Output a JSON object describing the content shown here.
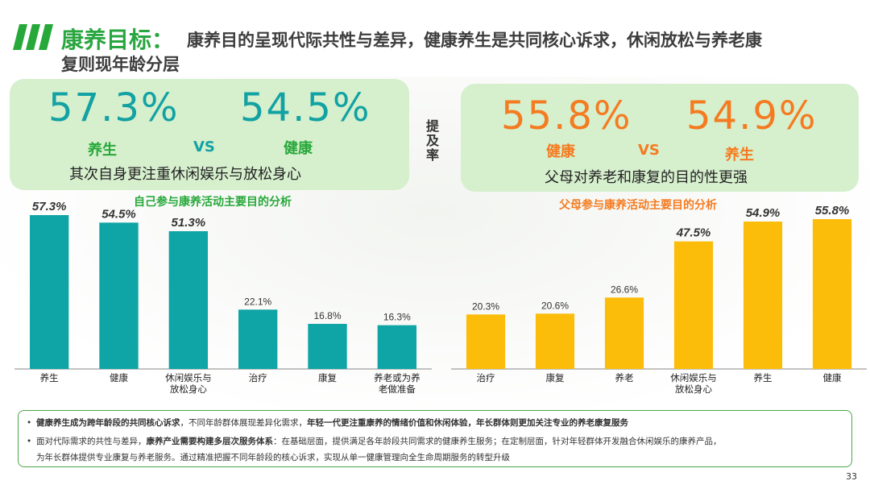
{
  "header": {
    "title": "康养目标：",
    "subtitle_line1": "康养目的呈现代际共性与差异，健康养生是共同核心诉求，休闲放松与养老康",
    "subtitle_line2": "复则现年龄分层"
  },
  "left_panel": {
    "value_a": "57.3%",
    "label_a": "养生",
    "vs": "VS",
    "value_b": "54.5%",
    "label_b": "健康",
    "note": "其次自身更注重休闲娱乐与放松身心"
  },
  "middle_label": [
    "提",
    "及",
    "率"
  ],
  "right_panel": {
    "value_a": "55.8%",
    "label_a": "健康",
    "vs": "VS",
    "value_b": "54.9%",
    "label_b": "养生",
    "note": "父母对养老和康复的目的性更强"
  },
  "chart_data": [
    {
      "type": "bar",
      "title": "自己参与康养活动主要目的分析",
      "categories": [
        "养生",
        "健康",
        "休闲娱乐与放松身心",
        "治疗",
        "康复",
        "养老或为养老做准备"
      ],
      "category_lines": [
        [
          "养生"
        ],
        [
          "健康"
        ],
        [
          "休闲娱乐与",
          "放松身心"
        ],
        [
          "治疗"
        ],
        [
          "康复"
        ],
        [
          "养老或为养",
          "老做准备"
        ]
      ],
      "values": [
        57.3,
        54.5,
        51.3,
        22.1,
        16.8,
        16.3
      ],
      "labels": [
        "57.3%",
        "54.5%",
        "51.3%",
        "22.1%",
        "16.8%",
        "16.3%"
      ],
      "highlighted": [
        true,
        true,
        true,
        false,
        false,
        false
      ],
      "ylim": [
        0,
        60
      ],
      "color": "#0fa5a6"
    },
    {
      "type": "bar",
      "title": "父母参与康养活动主要目的分析",
      "categories": [
        "治疗",
        "康复",
        "养老",
        "休闲娱乐与放松身心",
        "养生",
        "健康"
      ],
      "category_lines": [
        [
          "治疗"
        ],
        [
          "康复"
        ],
        [
          "养老"
        ],
        [
          "休闲娱乐与",
          "放松身心"
        ],
        [
          "养生"
        ],
        [
          "健康"
        ]
      ],
      "values": [
        20.3,
        20.6,
        26.6,
        47.5,
        54.9,
        55.8
      ],
      "labels": [
        "20.3%",
        "20.6%",
        "26.6%",
        "47.5%",
        "54.9%",
        "55.8%"
      ],
      "highlighted": [
        false,
        false,
        false,
        true,
        true,
        true
      ],
      "ylim": [
        0,
        60
      ],
      "color": "#fbbd09"
    }
  ],
  "footer": {
    "item1_bold1": "健康养生成为跨年龄段的共同核心诉求",
    "item1_text1": "，不同年龄群体展现差异化需求，",
    "item1_bold2": "年轻一代更注重康养的情绪价值和休闲体验，年长群体则更加关注专业的养老康复服务",
    "item2_text1": "面对代际需求的共性与差异，",
    "item2_bold1": "康养产业需要构建多层次服务体系",
    "item2_text2": "：在基础层面，提供满足各年龄段共同需求的健康养生服务；在定制层面，针对年轻群体开发融合休闲娱乐的康养产品，",
    "item2_text3": "为年长群体提供专业康复与养老服务。通过精准把握不同年龄段的核心诉求，实现从单一健康管理向全生命周期服务的转型升级"
  },
  "page_number": "33",
  "colors": {
    "green": "#27a83a",
    "teal": "#0fa5a6",
    "orange": "#f47b20",
    "yellow": "#fbbd09",
    "panel": "#d6efcd"
  }
}
